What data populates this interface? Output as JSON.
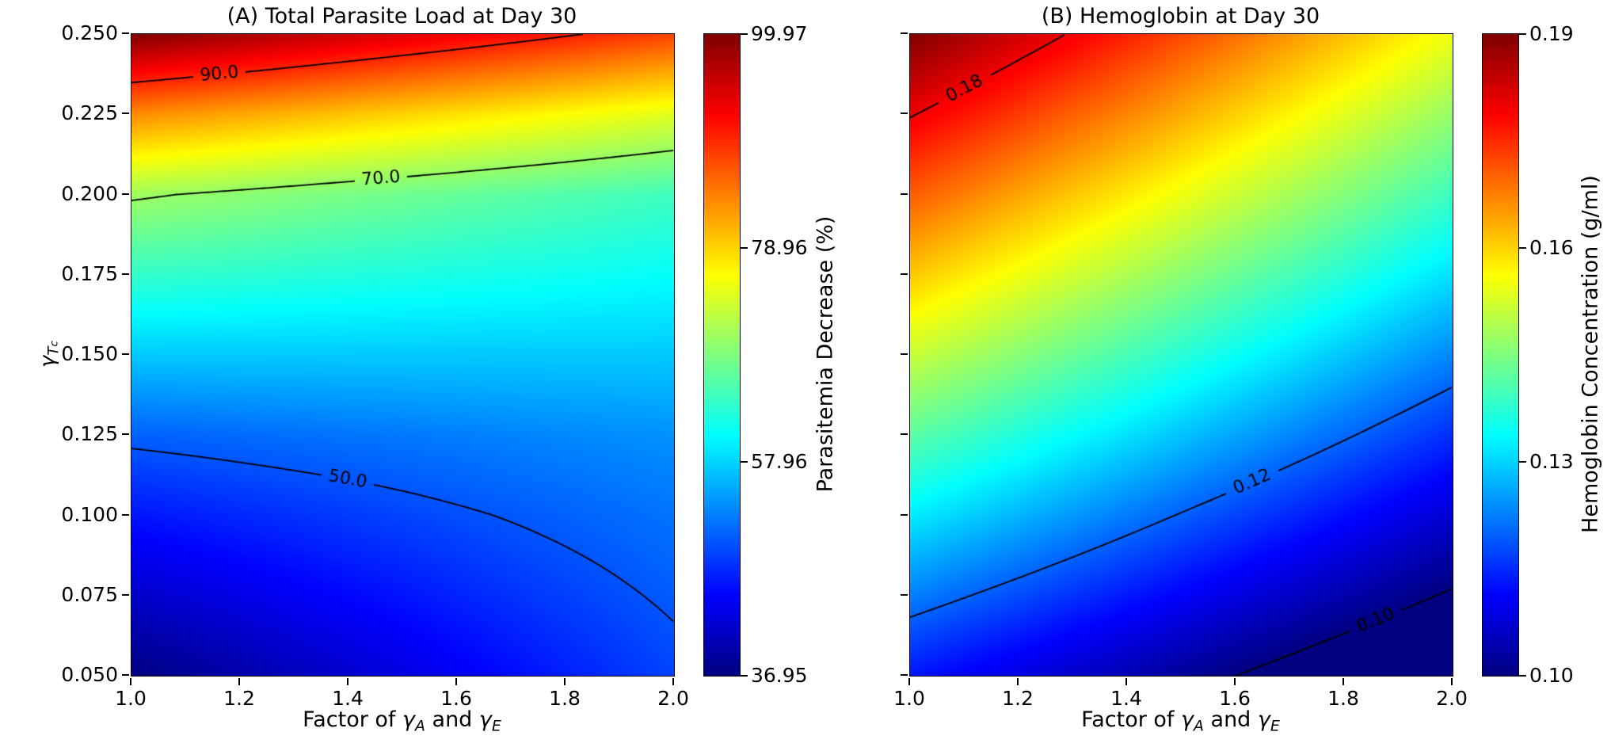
{
  "figure": {
    "background": "#ffffff",
    "text_color": "#000000",
    "contour_line_color": "#000000"
  },
  "labels": {
    "xlabel": {
      "pre": "Factor of ",
      "gamma1": "γ",
      "sub1": "A",
      "mid": " and ",
      "gamma2": "γ",
      "sub2": "E"
    },
    "ylabel": {
      "base": "γ",
      "sub": "T",
      "subsub": "c"
    }
  },
  "chart_data": [
    {
      "type": "heatmap",
      "panel": "A",
      "title": "(A) Total Parasite Load at Day 30",
      "xlabel": "Factor of γ_A and γ_E",
      "ylabel": "γ_T_c",
      "colormap": "jet",
      "xlim": [
        1.0,
        2.0
      ],
      "ylim": [
        0.05,
        0.25
      ],
      "x": [
        1.0,
        1.25,
        1.5,
        1.75,
        2.0
      ],
      "y": [
        0.05,
        0.075,
        0.1,
        0.125,
        0.15,
        0.175,
        0.2,
        0.225,
        0.25
      ],
      "values": [
        [
          37.0,
          40.0,
          43.0,
          46.0,
          49.0
        ],
        [
          41.5,
          43.8,
          46.0,
          48.3,
          50.5
        ],
        [
          46.0,
          47.5,
          49.0,
          50.5,
          52.0
        ],
        [
          50.8,
          51.6,
          52.3,
          53.1,
          53.8
        ],
        [
          57.3,
          57.3,
          57.3,
          57.3,
          57.3
        ],
        [
          63.8,
          63.1,
          62.3,
          61.6,
          60.8
        ],
        [
          70.5,
          69.0,
          67.5,
          66.0,
          64.5
        ],
        [
          83.5,
          81.3,
          79.0,
          76.8,
          74.5
        ],
        [
          99.97,
          97.0,
          94.0,
          91.0,
          88.0
        ]
      ],
      "vmin": 36.95,
      "vmax": 99.97,
      "colorbar": {
        "label": "Parasitemia Decrease (%)",
        "ticks": [
          "36.95",
          "57.96",
          "78.96",
          "99.97"
        ]
      },
      "contours": [
        {
          "level": 50,
          "label": "50.0",
          "label_x": 1.4
        },
        {
          "level": 70,
          "label": "70.0",
          "label_x": 1.46
        },
        {
          "level": 90,
          "label": "90.0",
          "label_x": 1.16
        }
      ],
      "xticks": [
        "1.0",
        "1.2",
        "1.4",
        "1.6",
        "1.8",
        "2.0"
      ],
      "yticks": [
        "0.050",
        "0.075",
        "0.100",
        "0.125",
        "0.150",
        "0.175",
        "0.200",
        "0.225",
        "0.250"
      ]
    },
    {
      "type": "heatmap",
      "panel": "B",
      "title": "(B) Hemoglobin at Day 30",
      "xlabel": "Factor of γ_A and γ_E",
      "ylabel": "",
      "colormap": "jet",
      "xlim": [
        1.0,
        2.0
      ],
      "ylim": [
        0.05,
        0.25
      ],
      "x": [
        1.0,
        1.25,
        1.5,
        1.75,
        2.0
      ],
      "y": [
        0.05,
        0.075,
        0.1,
        0.125,
        0.15,
        0.175,
        0.2,
        0.225,
        0.25
      ],
      "values": [
        [
          0.113,
          0.1076,
          0.1022,
          0.0967,
          0.0913
        ],
        [
          0.1226,
          0.1168,
          0.111,
          0.1051,
          0.0993
        ],
        [
          0.1323,
          0.126,
          0.1197,
          0.1135,
          0.1072
        ],
        [
          0.1419,
          0.1352,
          0.1285,
          0.1219,
          0.1152
        ],
        [
          0.1515,
          0.1444,
          0.1373,
          0.1302,
          0.1232
        ],
        [
          0.1611,
          0.1536,
          0.1461,
          0.1386,
          0.1311
        ],
        [
          0.1708,
          0.1628,
          0.1549,
          0.147,
          0.1391
        ],
        [
          0.1804,
          0.172,
          0.1637,
          0.1554,
          0.147
        ],
        [
          0.19,
          0.1813,
          0.1725,
          0.1638,
          0.155
        ]
      ],
      "vmin": 0.1,
      "vmax": 0.19,
      "colorbar": {
        "label": "Hemoglobin Concentration (g/ml)",
        "ticks": [
          "0.10",
          "0.13",
          "0.16",
          "0.19"
        ]
      },
      "contours": [
        {
          "level": 0.1,
          "label": "0.10",
          "label_x": 1.86
        },
        {
          "level": 0.12,
          "label": "0.12",
          "label_x": 1.63
        },
        {
          "level": 0.18,
          "label": "0.18",
          "label_x": 1.1
        }
      ],
      "xticks": [
        "1.0",
        "1.2",
        "1.4",
        "1.6",
        "1.8",
        "2.0"
      ],
      "yticks": []
    }
  ]
}
